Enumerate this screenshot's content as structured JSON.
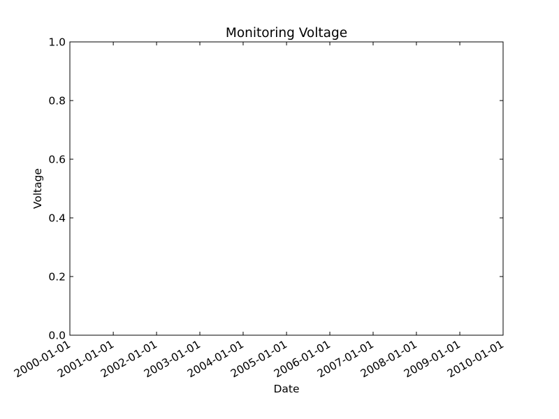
{
  "chart_data": {
    "type": "line",
    "title": "Monitoring Voltage",
    "xlabel": "Date",
    "ylabel": "Voltage",
    "x_axis_type": "date",
    "xlim": [
      "2000-01-01",
      "2010-01-01"
    ],
    "ylim": [
      0.0,
      1.0
    ],
    "x_ticks": [
      "2000-01-01",
      "2001-01-01",
      "2002-01-01",
      "2003-01-01",
      "2004-01-01",
      "2005-01-01",
      "2006-01-01",
      "2007-01-01",
      "2008-01-01",
      "2009-01-01",
      "2010-01-01"
    ],
    "y_ticks": [
      "0.0",
      "0.2",
      "0.4",
      "0.6",
      "0.8",
      "1.0"
    ],
    "x_tick_rotation": 30,
    "grid": false,
    "legend": "none",
    "series": [],
    "colors": {
      "background": "#ffffff",
      "axes": "#000000",
      "text": "#000000"
    }
  }
}
